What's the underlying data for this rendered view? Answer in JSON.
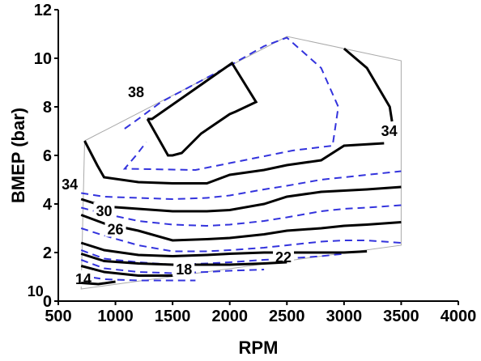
{
  "chart_data": {
    "type": "line",
    "title": "",
    "xlabel": "RPM",
    "ylabel": "BMEP (bar)",
    "xlim": [
      500,
      4000
    ],
    "ylim": [
      0,
      12
    ],
    "xticks": [
      "500",
      "1000",
      "1500",
      "2000",
      "2500",
      "3000",
      "3500",
      "4000"
    ],
    "yticks": [
      "0",
      "2",
      "4",
      "6",
      "8",
      "10",
      "12"
    ],
    "grid": false,
    "legend": "none",
    "colors": {
      "solid": "#000000",
      "dashed": "#3333dd",
      "boundary": "#aaaaaa"
    },
    "boundary": {
      "x": [
        730,
        730,
        2500,
        3500,
        3500,
        700,
        700,
        730
      ],
      "y": [
        6.6,
        6.6,
        10.9,
        9.9,
        2.3,
        0.5,
        0.5,
        6.6
      ]
    },
    "solid_contours": [
      {
        "label": "38",
        "label_at": [
          1180,
          8.6
        ],
        "x": [
          1280,
          1460,
          1500,
          1580,
          1750,
          2000,
          2050,
          2230,
          2020,
          1320,
          1280
        ],
        "y": [
          7.5,
          6.0,
          6.0,
          6.1,
          6.9,
          7.7,
          7.8,
          8.2,
          9.8,
          7.5,
          7.5
        ]
      },
      {
        "label": "34",
        "label_at": [
          600,
          4.8
        ],
        "x": [
          730,
          840,
          900,
          1200,
          1500,
          1800,
          2000,
          2300,
          2500,
          2800,
          3000,
          3350
        ],
        "y": [
          6.6,
          5.6,
          5.1,
          4.9,
          4.85,
          4.85,
          5.2,
          5.4,
          5.6,
          5.8,
          6.4,
          6.5
        ]
      },
      {
        "label": "34",
        "label_at": [
          3395,
          7.0
        ],
        "x": [
          3000,
          3200,
          3300,
          3400,
          3420
        ],
        "y": [
          10.4,
          9.6,
          8.8,
          8.0,
          7.4
        ]
      },
      {
        "label": "30",
        "label_at": [
          900,
          3.7
        ],
        "x": [
          700,
          900,
          1200,
          1500,
          1800,
          2000,
          2300,
          2500,
          2800,
          3000,
          3200,
          3500
        ],
        "y": [
          4.2,
          3.9,
          3.8,
          3.7,
          3.7,
          3.75,
          4.0,
          4.3,
          4.5,
          4.55,
          4.6,
          4.7
        ]
      },
      {
        "label": "26",
        "label_at": [
          1000,
          2.95
        ],
        "x": [
          700,
          900,
          1200,
          1500,
          1800,
          2000,
          2300,
          2500,
          2800,
          3000,
          3200,
          3500
        ],
        "y": [
          3.55,
          3.2,
          2.9,
          2.5,
          2.55,
          2.6,
          2.75,
          2.9,
          3.0,
          3.1,
          3.15,
          3.25
        ]
      },
      {
        "label": "22",
        "label_at": [
          2470,
          1.8
        ],
        "x": [
          700,
          900,
          1200,
          1500,
          1800,
          2000,
          2300,
          2500,
          2800,
          3000,
          3200
        ],
        "y": [
          2.4,
          2.1,
          1.9,
          1.85,
          1.9,
          1.95,
          2.0,
          2.0,
          2.0,
          2.0,
          2.05
        ]
      },
      {
        "label": "18",
        "label_at": [
          1600,
          1.3
        ],
        "x": [
          700,
          900,
          1200,
          1500,
          1800,
          2000,
          2300,
          2500
        ],
        "y": [
          1.95,
          1.65,
          1.55,
          1.5,
          1.5,
          1.5,
          1.55,
          1.6
        ]
      },
      {
        "label": "14",
        "label_at": [
          720,
          0.9
        ],
        "x": [
          700,
          900,
          1200,
          1500
        ],
        "y": [
          1.45,
          1.2,
          1.05,
          1.05
        ]
      },
      {
        "label": "10",
        "label_at": [
          300,
          0.4
        ],
        "x": [
          700,
          850,
          1000
        ],
        "y": [
          0.75,
          0.7,
          0.8
        ]
      }
    ],
    "dashed_contours": [
      {
        "x": [
          1080,
          1200,
          1400,
          1600,
          1800,
          2000,
          2300,
          2500,
          2800,
          2950,
          2900,
          2550,
          1700,
          1080,
          1180,
          1270
        ],
        "y": [
          7.1,
          7.5,
          8.2,
          8.7,
          9.2,
          9.7,
          10.5,
          10.85,
          9.6,
          8.0,
          6.4,
          6.2,
          5.4,
          5.45,
          6.0,
          6.55
        ]
      },
      {
        "x": [
          700,
          900,
          1200,
          1500,
          1800,
          2000,
          2300,
          2500,
          2800,
          3000,
          3200,
          3500
        ],
        "y": [
          4.45,
          4.3,
          4.25,
          4.2,
          4.25,
          4.35,
          4.6,
          4.75,
          5.0,
          5.1,
          5.2,
          5.35
        ]
      },
      {
        "x": [
          700,
          900,
          1200,
          1500,
          1800,
          2000,
          2300,
          2500,
          2800,
          3000,
          3200,
          3500
        ],
        "y": [
          3.85,
          3.6,
          3.3,
          3.15,
          3.1,
          3.15,
          3.3,
          3.45,
          3.7,
          3.8,
          3.85,
          3.95
        ]
      },
      {
        "x": [
          700,
          900,
          1200,
          1500,
          1800,
          2000,
          2300,
          2500,
          2800,
          3000,
          3200,
          3500
        ],
        "y": [
          3.0,
          2.7,
          2.3,
          2.05,
          2.05,
          2.1,
          2.2,
          2.3,
          2.45,
          2.5,
          2.5,
          2.4
        ]
      },
      {
        "x": [
          700,
          900,
          1200,
          1500,
          1800,
          2000,
          2300,
          2500,
          2800,
          3000
        ],
        "y": [
          2.1,
          1.75,
          1.6,
          1.5,
          1.55,
          1.6,
          1.7,
          1.75,
          1.85,
          1.95
        ]
      },
      {
        "x": [
          700,
          900,
          1200,
          1500,
          1800,
          2000,
          2300
        ],
        "y": [
          1.7,
          1.35,
          1.2,
          1.15,
          1.2,
          1.25,
          1.3
        ]
      },
      {
        "x": [
          700,
          900,
          1200,
          1500,
          1700
        ],
        "y": [
          1.05,
          0.9,
          0.85,
          0.85,
          0.85
        ]
      }
    ]
  }
}
